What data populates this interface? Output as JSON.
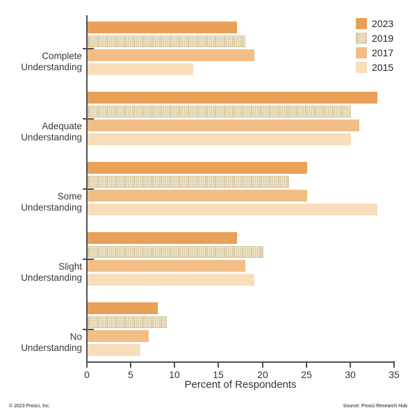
{
  "chart_data": {
    "type": "bar",
    "orientation": "horizontal",
    "xlabel": "Percent of Respondents",
    "xlim": [
      0,
      35
    ],
    "xticks": [
      0,
      5,
      10,
      15,
      20,
      25,
      30,
      35
    ],
    "grid": false,
    "legend_position": "top-right",
    "categories": [
      "Complete Understanding",
      "Adequate Understanding",
      "Some Understanding",
      "Slight Understanding",
      "No Understanding"
    ],
    "series": [
      {
        "name": "2023",
        "color": "#E8A157",
        "pattern": "solid",
        "values": [
          17,
          33,
          25,
          17,
          8
        ]
      },
      {
        "name": "2019",
        "color": "#F0E8CE",
        "pattern": "crosshatch",
        "values": [
          18,
          30,
          23,
          20,
          9
        ]
      },
      {
        "name": "2017",
        "color": "#F1BE85",
        "pattern": "solid",
        "values": [
          19,
          31,
          25,
          18,
          7
        ]
      },
      {
        "name": "2015",
        "color": "#F8DDBA",
        "pattern": "solid",
        "values": [
          12,
          30,
          33,
          19,
          6
        ]
      }
    ]
  },
  "footer": {
    "left": "© 2023 Prosci, Inc.",
    "right": "Source: Prosci Research Hub"
  },
  "colors": {
    "axis": "#4F4F4F",
    "text": "#333333",
    "hatch_base": "#F0E8CE",
    "hatch_line": "#D8C79D"
  }
}
